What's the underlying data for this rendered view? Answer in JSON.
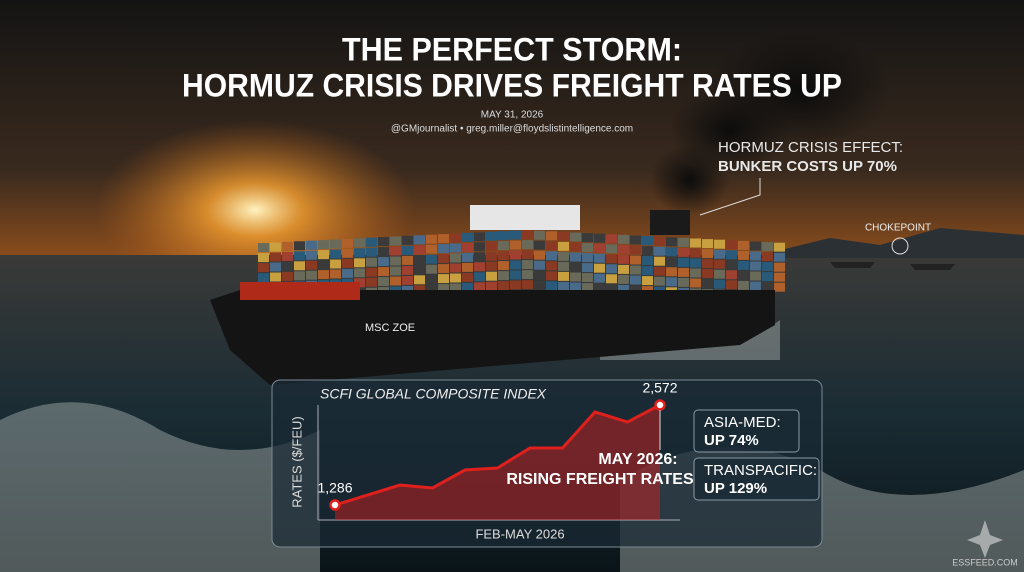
{
  "header": {
    "title_line1": "THE PERFECT STORM:",
    "title_line2": "HORMUZ CRISIS DRIVES FREIGHT RATES UP",
    "date": "MAY 31, 2026",
    "byline": "@GMjournalist • greg.miller@floydslistintelligence.com"
  },
  "callouts": {
    "bunker_line1": "HORMUZ CRISIS EFFECT:",
    "bunker_line2": "BUNKER COSTS UP 70%",
    "chokepoint": "CHOKEPOINT",
    "ship_name": "MSC ZOE"
  },
  "side_boxes": [
    {
      "label": "ASIA-MED:",
      "value": "UP 74%"
    },
    {
      "label": "TRANSPACIFIC:",
      "value": "UP 129%"
    }
  ],
  "chart_data": {
    "type": "line",
    "title": "SCFI GLOBAL COMPOSITE INDEX",
    "ylabel": "RATES ($/FEU)",
    "xlabel": "FEB-MAY 2026",
    "annotation_line1": "MAY 2026:",
    "annotation_line2": "RISING FREIGHT RATES",
    "series": [
      {
        "name": "SCFI",
        "color": "#e0201c",
        "values": [
          1286,
          1414,
          1543,
          1505,
          1736,
          1762,
          2019,
          2019,
          2482,
          2353,
          2572
        ],
        "value_labels": [
          "1,286",
          null,
          null,
          null,
          null,
          null,
          null,
          null,
          null,
          null,
          "2,572"
        ]
      }
    ]
  },
  "footer": {
    "brand": "ESSFEED.COM"
  }
}
